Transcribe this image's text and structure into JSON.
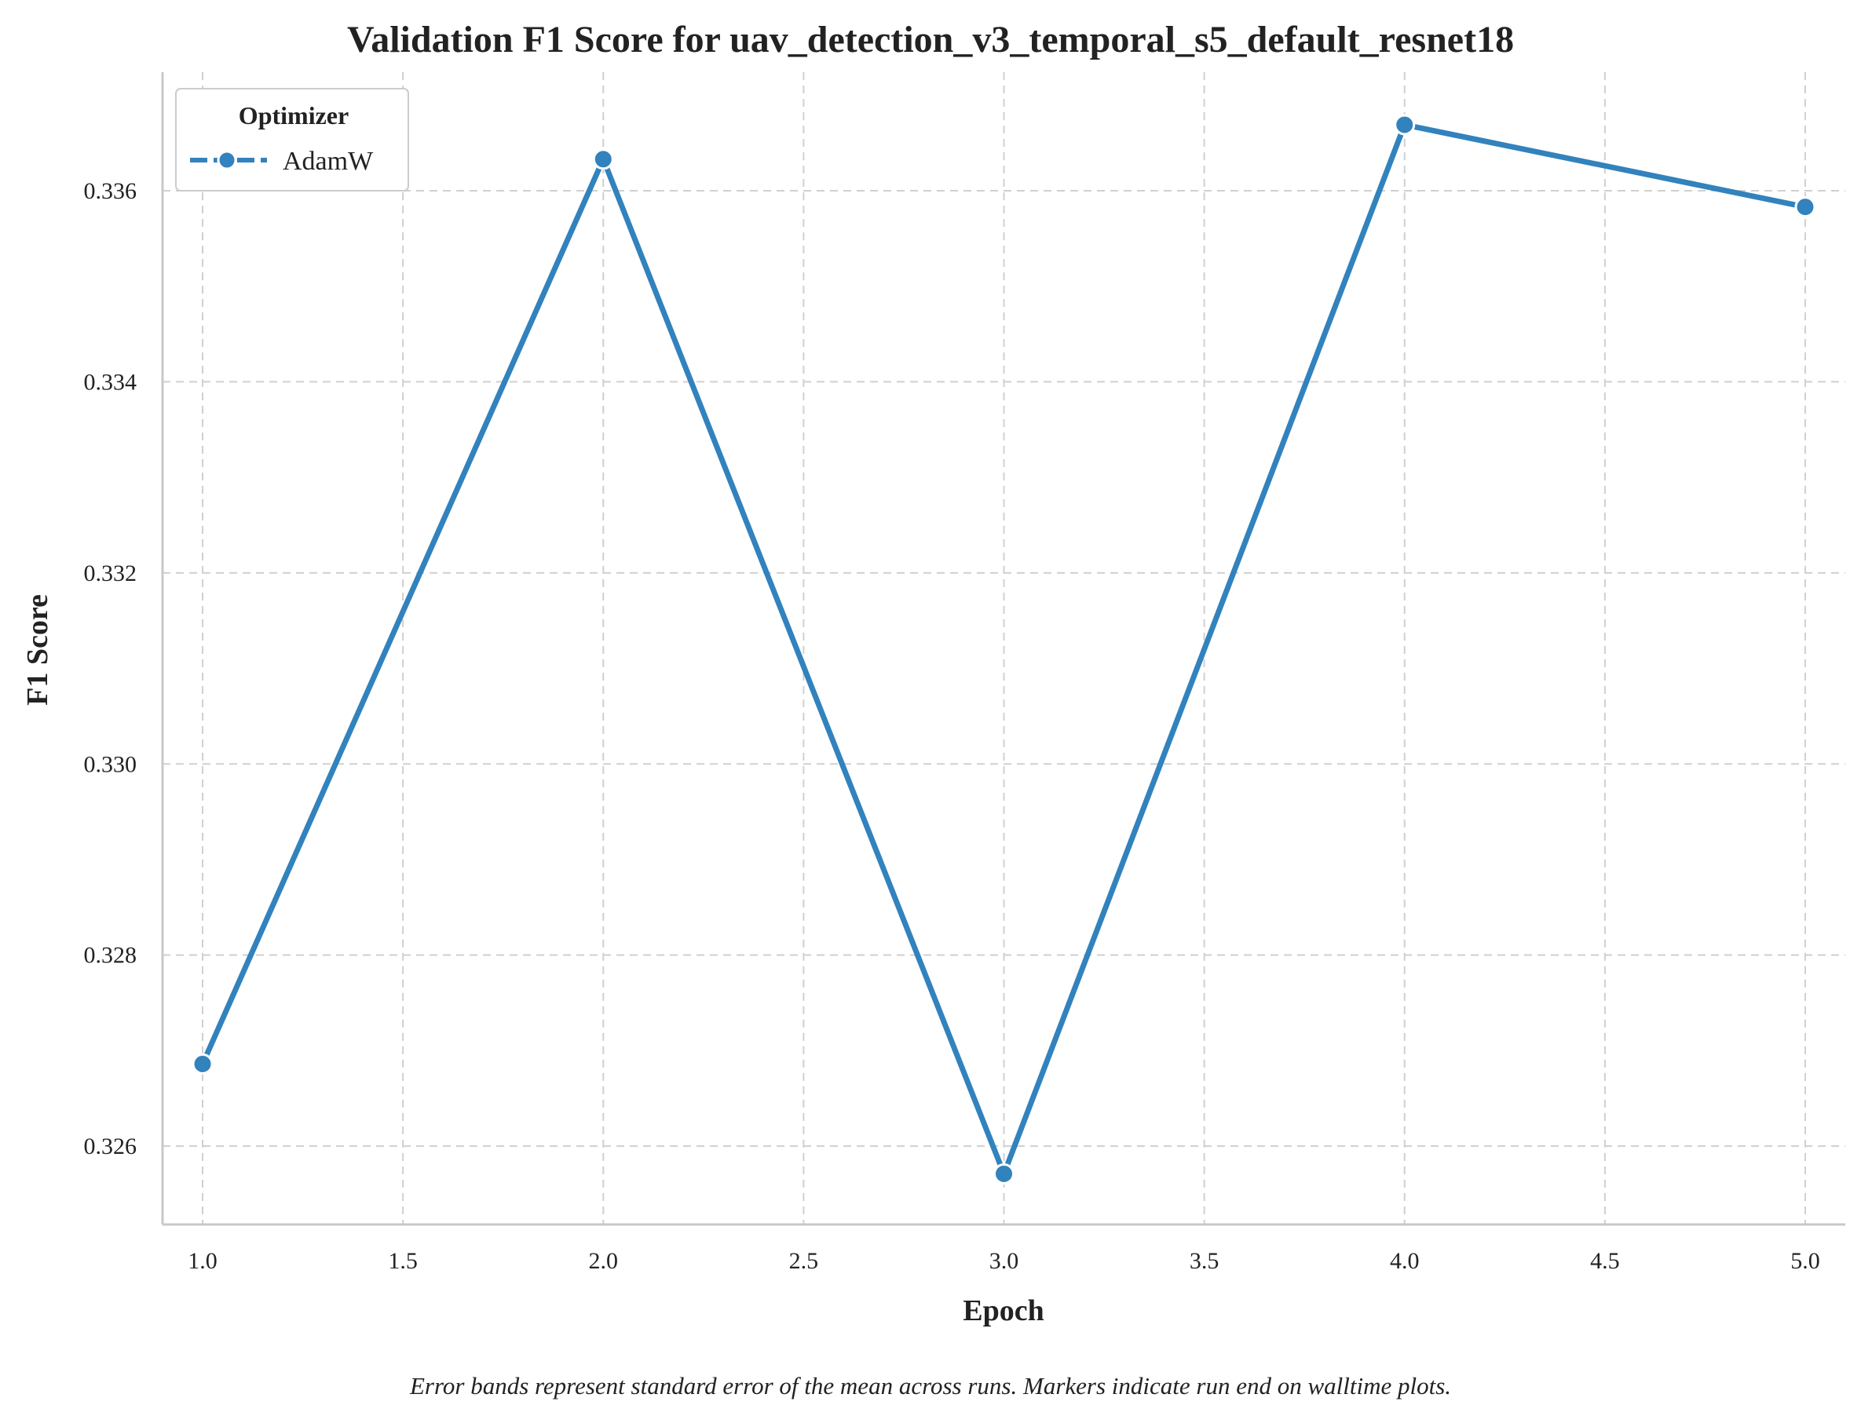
{
  "chart_data": {
    "type": "line",
    "title": "Validation F1 Score for uav_detection_v3_temporal_s5_default_resnet18",
    "xlabel": "Epoch",
    "ylabel": "F1 Score",
    "xlim": [
      0.9,
      5.1
    ],
    "ylim": [
      0.32518,
      0.33724
    ],
    "x_ticks": [
      1.0,
      1.5,
      2.0,
      2.5,
      3.0,
      3.5,
      4.0,
      4.5,
      5.0
    ],
    "x_tick_labels": [
      "1.0",
      "1.5",
      "2.0",
      "2.5",
      "3.0",
      "3.5",
      "4.0",
      "4.5",
      "5.0"
    ],
    "y_ticks": [
      0.326,
      0.328,
      0.33,
      0.332,
      0.334,
      0.336
    ],
    "y_tick_labels": [
      "0.326",
      "0.328",
      "0.330",
      "0.332",
      "0.334",
      "0.336"
    ],
    "grid": true,
    "legend": {
      "title": "Optimizer",
      "placement": "top-left"
    },
    "series": [
      {
        "name": "AdamW",
        "color": "#3282bd",
        "marker": "circle",
        "x": [
          1.0,
          2.0,
          3.0,
          4.0,
          5.0
        ],
        "y": [
          0.32686,
          0.33633,
          0.32571,
          0.33669,
          0.33583
        ]
      }
    ],
    "caption": "Error bands represent standard error of the mean across runs. Markers indicate run end on walltime plots."
  }
}
